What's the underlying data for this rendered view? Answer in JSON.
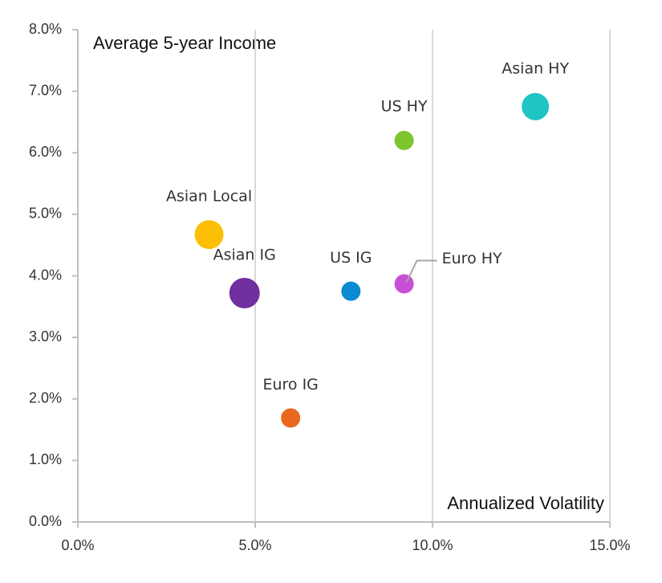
{
  "chart_data": {
    "type": "scatter",
    "xlabel": "Annualized Volatility",
    "ylabel": "Average 5-year Income",
    "labels": [
      "Asian HY",
      "US HY",
      "Asian Local",
      "Asian IG",
      "US IG",
      "Euro HY",
      "Euro IG"
    ],
    "x": [
      12.9,
      9.2,
      3.7,
      4.7,
      7.7,
      9.2,
      6.0
    ],
    "values": [
      6.75,
      6.2,
      4.67,
      3.72,
      3.75,
      3.87,
      1.69
    ],
    "sizes": [
      17,
      12,
      18,
      19,
      12,
      12,
      12
    ],
    "colors": [
      "#1fc4c4",
      "#7dc52d",
      "#fcbf06",
      "#7030a0",
      "#0a8ad0",
      "#c94fd6",
      "#e8681e"
    ],
    "xlim": [
      0,
      15
    ],
    "ylim": [
      0,
      8
    ],
    "xticks": [
      {
        "value": 0,
        "label": "0.0%"
      },
      {
        "value": 5,
        "label": "5.0%"
      },
      {
        "value": 10,
        "label": "10.0%"
      },
      {
        "value": 15,
        "label": "15.0%"
      }
    ],
    "yticks": [
      {
        "value": 0,
        "label": "0.0%"
      },
      {
        "value": 1,
        "label": "1.0%"
      },
      {
        "value": 2,
        "label": "2.0%"
      },
      {
        "value": 3,
        "label": "3.0%"
      },
      {
        "value": 4,
        "label": "4.0%"
      },
      {
        "value": 5,
        "label": "5.0%"
      },
      {
        "value": 6,
        "label": "6.0%"
      },
      {
        "value": 7,
        "label": "7.0%"
      },
      {
        "value": 8,
        "label": "8.0%"
      }
    ],
    "grid": true
  }
}
